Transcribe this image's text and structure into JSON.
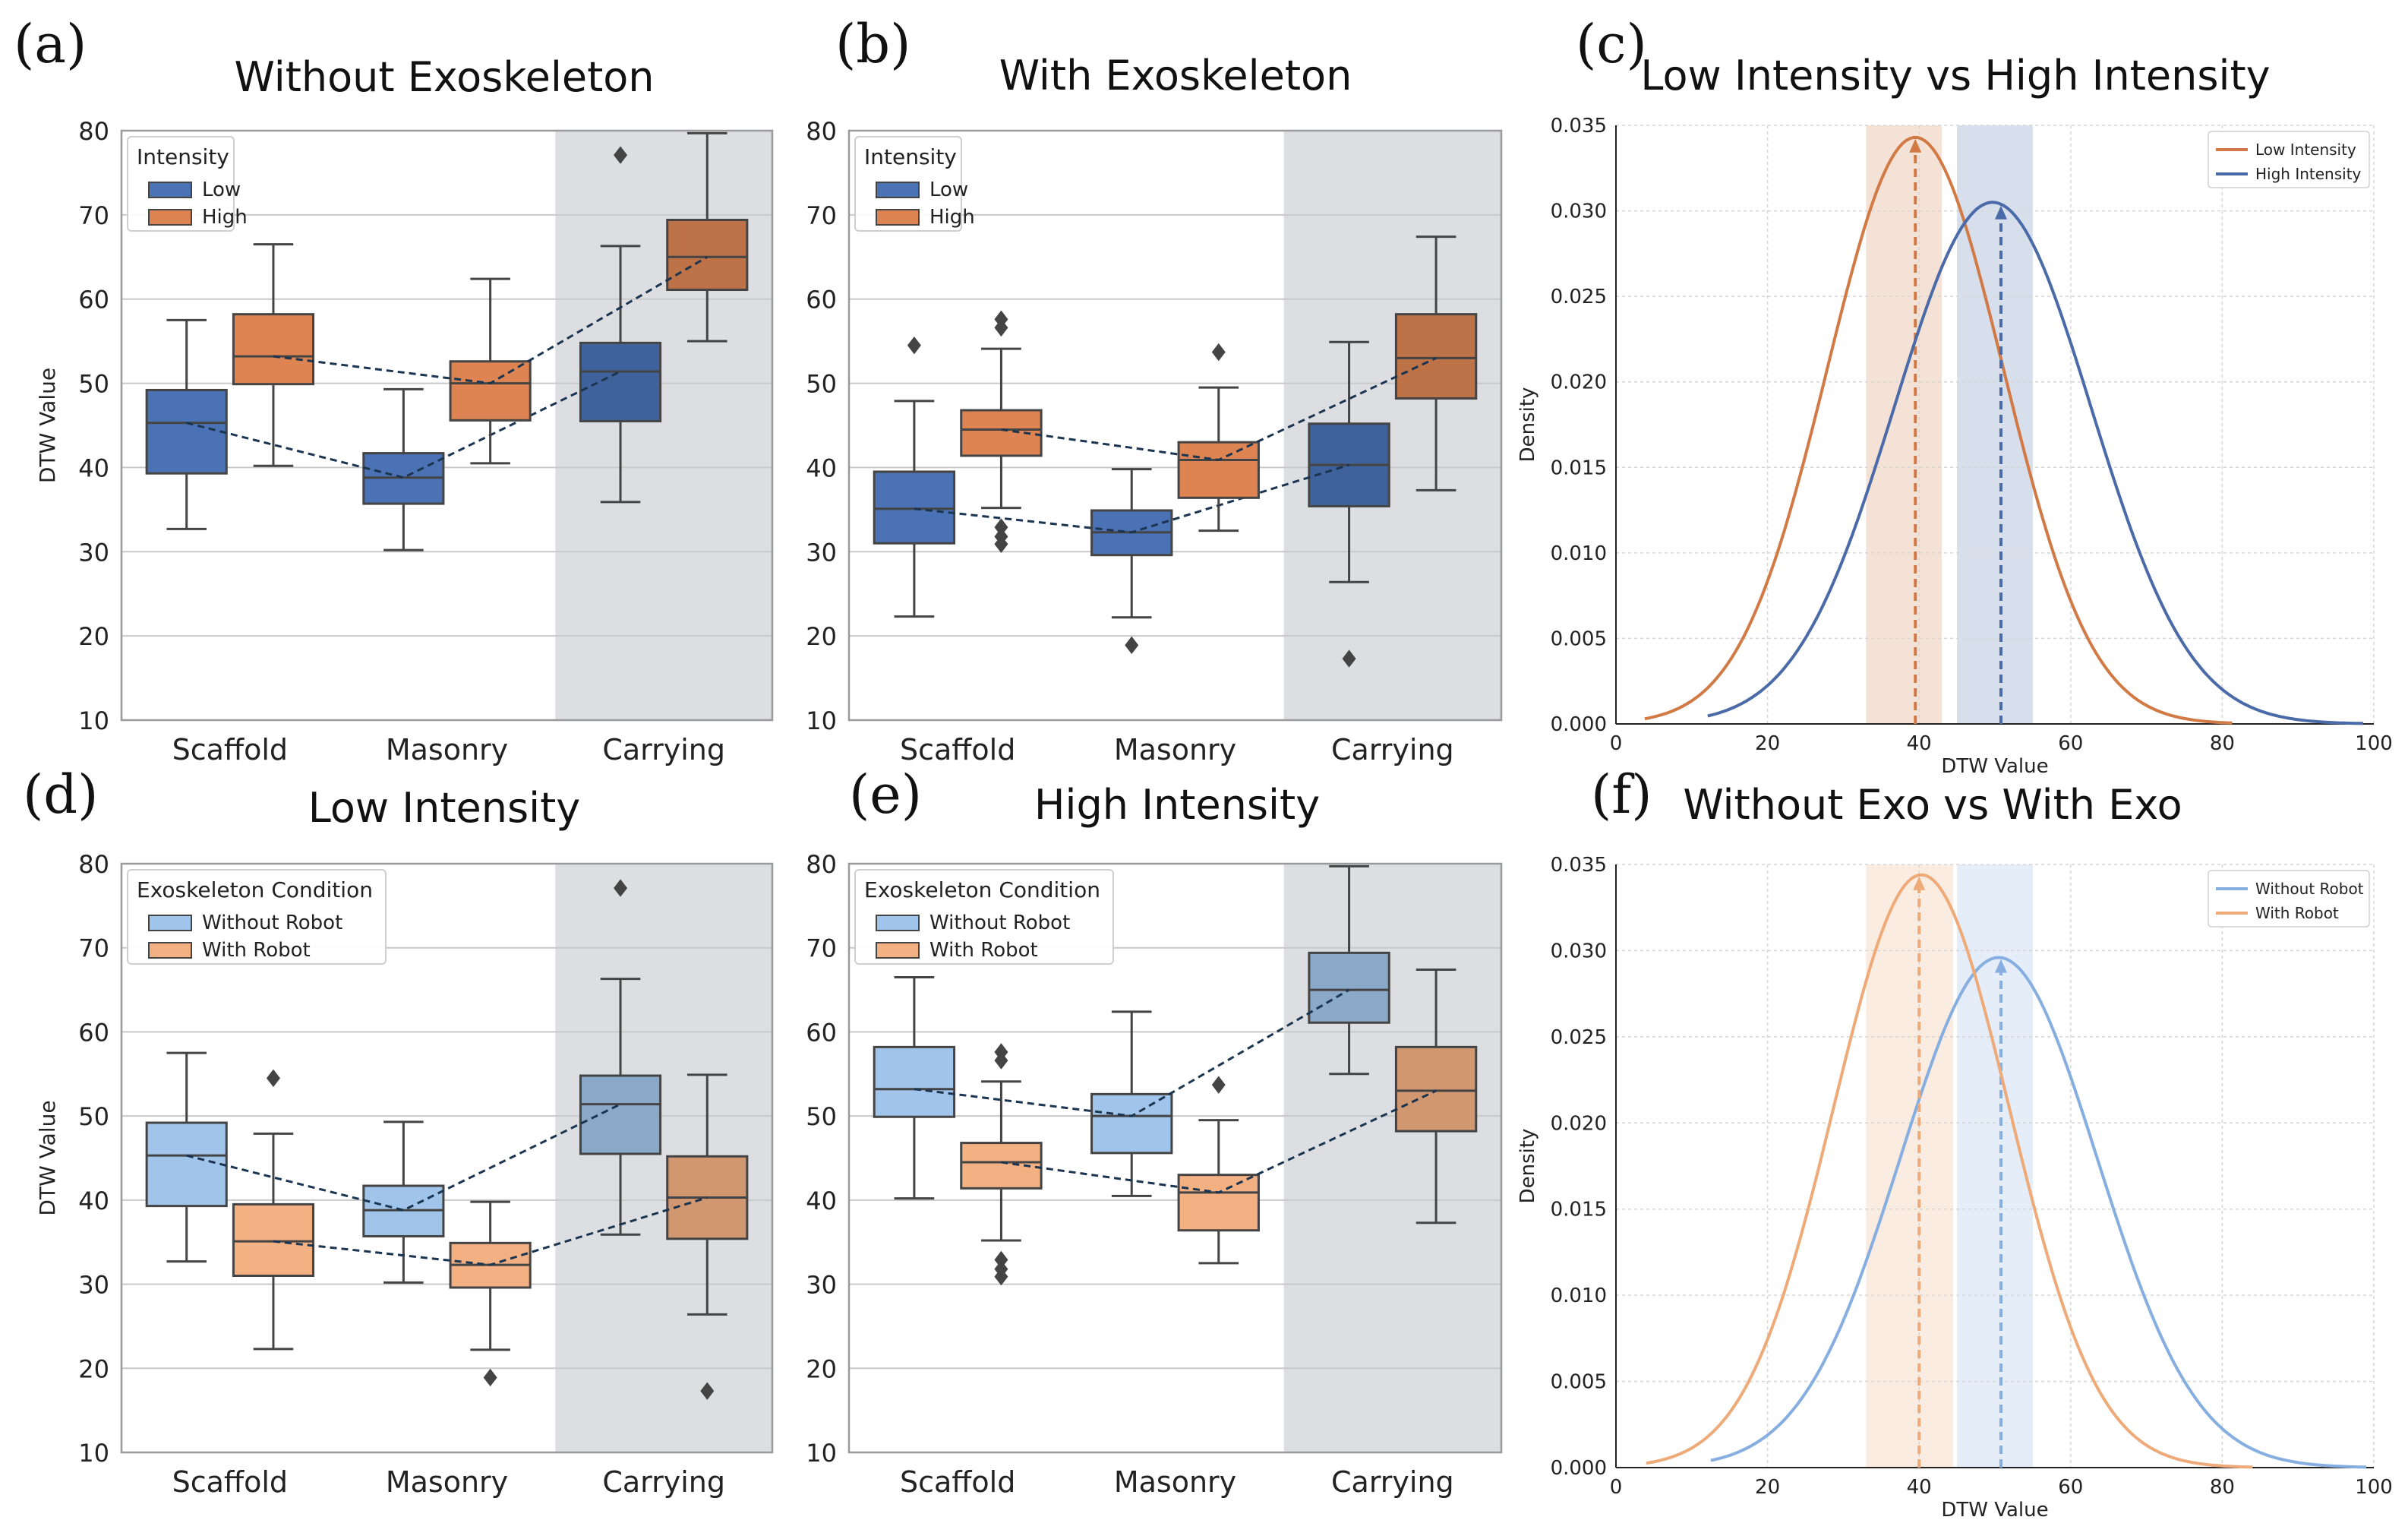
{
  "figure": {
    "colors": {
      "low": "#4a72b5",
      "high": "#dd8452",
      "without_robot": "#a1c4ea",
      "with_robot": "#f2b083",
      "kde_low": "#d27a45",
      "kde_high": "#4a6aa8",
      "kde_without": "#86aee0",
      "kde_with": "#eeaa78",
      "shade": "#dcdee2",
      "trend": "#1b3450"
    }
  },
  "chart_data": [
    {
      "panel": "(a)",
      "type": "box",
      "title": "Without Exoskeleton",
      "xlabel": "",
      "ylabel": "DTW Value",
      "ylim": [
        10,
        80
      ],
      "yticks": [
        10,
        20,
        30,
        40,
        50,
        60,
        70,
        80
      ],
      "categories": [
        "Scaffold",
        "Masonry",
        "Carrying"
      ],
      "shaded_category": "Carrying",
      "legend": {
        "title": "Intensity",
        "location": "top-left"
      },
      "trend_lines": true,
      "series": [
        {
          "name": "Low",
          "color_key": "low",
          "boxes": [
            {
              "min": 32.7,
              "q1": 39.3,
              "median": 45.3,
              "q3": 49.2,
              "max": 57.5,
              "outliers": []
            },
            {
              "min": 30.2,
              "q1": 35.7,
              "median": 38.8,
              "q3": 41.7,
              "max": 49.3,
              "outliers": []
            },
            {
              "min": 35.9,
              "q1": 45.5,
              "median": 51.4,
              "q3": 54.8,
              "max": 66.3,
              "outliers": [
                77.1
              ]
            }
          ]
        },
        {
          "name": "High",
          "color_key": "high",
          "boxes": [
            {
              "min": 40.2,
              "q1": 49.9,
              "median": 53.2,
              "q3": 58.2,
              "max": 66.5,
              "outliers": []
            },
            {
              "min": 40.5,
              "q1": 45.6,
              "median": 50.0,
              "q3": 52.6,
              "max": 62.4,
              "outliers": []
            },
            {
              "min": 55.0,
              "q1": 61.1,
              "median": 65.0,
              "q3": 69.4,
              "max": 79.7,
              "outliers": []
            }
          ]
        }
      ]
    },
    {
      "panel": "(b)",
      "type": "box",
      "title": "With Exoskeleton",
      "xlabel": "",
      "ylabel": "",
      "ylim": [
        10,
        80
      ],
      "yticks": [
        10,
        20,
        30,
        40,
        50,
        60,
        70,
        80
      ],
      "categories": [
        "Scaffold",
        "Masonry",
        "Carrying"
      ],
      "shaded_category": "Carrying",
      "legend": {
        "title": "Intensity",
        "location": "top-left"
      },
      "trend_lines": true,
      "series": [
        {
          "name": "Low",
          "color_key": "low",
          "boxes": [
            {
              "min": 22.3,
              "q1": 31.0,
              "median": 35.1,
              "q3": 39.5,
              "max": 47.9,
              "outliers": [
                54.5
              ]
            },
            {
              "min": 22.2,
              "q1": 29.6,
              "median": 32.3,
              "q3": 34.9,
              "max": 39.8,
              "outliers": [
                18.9
              ]
            },
            {
              "min": 26.4,
              "q1": 35.4,
              "median": 40.3,
              "q3": 45.2,
              "max": 54.9,
              "outliers": [
                17.3
              ]
            }
          ]
        },
        {
          "name": "High",
          "color_key": "high",
          "boxes": [
            {
              "min": 35.2,
              "q1": 41.4,
              "median": 44.5,
              "q3": 46.8,
              "max": 54.1,
              "outliers": [
                56.6,
                57.6,
                30.9,
                31.8,
                32.9
              ]
            },
            {
              "min": 32.5,
              "q1": 36.4,
              "median": 40.9,
              "q3": 43.0,
              "max": 49.5,
              "outliers": [
                53.7
              ]
            },
            {
              "min": 37.3,
              "q1": 48.2,
              "median": 53.0,
              "q3": 58.2,
              "max": 67.4,
              "outliers": []
            }
          ]
        }
      ]
    },
    {
      "panel": "(c)",
      "type": "density",
      "title": "Low Intensity vs High Intensity",
      "xlabel": "DTW Value",
      "ylabel": "Density",
      "xlim": [
        0,
        100
      ],
      "ylim": [
        0,
        0.035
      ],
      "xticks": [
        0,
        20,
        40,
        60,
        80,
        100
      ],
      "yticks": [
        "0.000",
        "0.005",
        "0.010",
        "0.015",
        "0.020",
        "0.025",
        "0.030",
        "0.035"
      ],
      "legend": {
        "location": "top-right"
      },
      "series": [
        {
          "name": "Low Intensity",
          "color_key": "kde_low",
          "peak_x": 39.5,
          "peak_y": 0.0343,
          "sigma": 11.6,
          "x_range": [
            3.8,
            81.5
          ],
          "marker_x": 39.5,
          "band": [
            33.0,
            43.0
          ]
        },
        {
          "name": "High Intensity",
          "color_key": "kde_high",
          "peak_x": 49.7,
          "peak_y": 0.0305,
          "sigma": 13.0,
          "x_range": [
            12.1,
            98.6
          ],
          "marker_x": 50.8,
          "band": [
            45.0,
            55.0
          ]
        }
      ]
    },
    {
      "panel": "(d)",
      "type": "box",
      "title": "Low Intensity",
      "xlabel": "",
      "ylabel": "DTW Value",
      "ylim": [
        10,
        80
      ],
      "yticks": [
        10,
        20,
        30,
        40,
        50,
        60,
        70,
        80
      ],
      "categories": [
        "Scaffold",
        "Masonry",
        "Carrying"
      ],
      "shaded_category": "Carrying",
      "legend": {
        "title": "Exoskeleton Condition",
        "location": "top-left"
      },
      "trend_lines": true,
      "series": [
        {
          "name": "Without Robot",
          "color_key": "without_robot",
          "boxes": [
            {
              "min": 32.7,
              "q1": 39.3,
              "median": 45.3,
              "q3": 49.2,
              "max": 57.5,
              "outliers": []
            },
            {
              "min": 30.2,
              "q1": 35.7,
              "median": 38.8,
              "q3": 41.7,
              "max": 49.3,
              "outliers": []
            },
            {
              "min": 35.9,
              "q1": 45.5,
              "median": 51.4,
              "q3": 54.8,
              "max": 66.3,
              "outliers": [
                77.1
              ]
            }
          ]
        },
        {
          "name": "With Robot",
          "color_key": "with_robot",
          "boxes": [
            {
              "min": 22.3,
              "q1": 31.0,
              "median": 35.1,
              "q3": 39.5,
              "max": 47.9,
              "outliers": [
                54.5
              ]
            },
            {
              "min": 22.2,
              "q1": 29.6,
              "median": 32.3,
              "q3": 34.9,
              "max": 39.8,
              "outliers": [
                18.9
              ]
            },
            {
              "min": 26.4,
              "q1": 35.4,
              "median": 40.3,
              "q3": 45.2,
              "max": 54.9,
              "outliers": [
                17.3
              ]
            }
          ]
        }
      ]
    },
    {
      "panel": "(e)",
      "type": "box",
      "title": "High Intensity",
      "xlabel": "",
      "ylabel": "",
      "ylim": [
        10,
        80
      ],
      "yticks": [
        10,
        20,
        30,
        40,
        50,
        60,
        70,
        80
      ],
      "categories": [
        "Scaffold",
        "Masonry",
        "Carrying"
      ],
      "shaded_category": "Carrying",
      "legend": {
        "title": "Exoskeleton Condition",
        "location": "top-left"
      },
      "trend_lines": true,
      "series": [
        {
          "name": "Without Robot",
          "color_key": "without_robot",
          "boxes": [
            {
              "min": 40.2,
              "q1": 49.9,
              "median": 53.2,
              "q3": 58.2,
              "max": 66.5,
              "outliers": []
            },
            {
              "min": 40.5,
              "q1": 45.6,
              "median": 50.0,
              "q3": 52.6,
              "max": 62.4,
              "outliers": []
            },
            {
              "min": 55.0,
              "q1": 61.1,
              "median": 65.0,
              "q3": 69.4,
              "max": 79.7,
              "outliers": []
            }
          ]
        },
        {
          "name": "With Robot",
          "color_key": "with_robot",
          "boxes": [
            {
              "min": 35.2,
              "q1": 41.4,
              "median": 44.5,
              "q3": 46.8,
              "max": 54.1,
              "outliers": [
                56.6,
                57.6,
                30.9,
                31.8,
                32.9
              ]
            },
            {
              "min": 32.5,
              "q1": 36.4,
              "median": 40.9,
              "q3": 43.0,
              "max": 49.5,
              "outliers": [
                53.7
              ]
            },
            {
              "min": 37.3,
              "q1": 48.2,
              "median": 53.0,
              "q3": 58.2,
              "max": 67.4,
              "outliers": []
            }
          ]
        }
      ]
    },
    {
      "panel": "(f)",
      "type": "density",
      "title": "Without Exo vs With Exo",
      "xlabel": "DTW Value",
      "ylabel": "Density",
      "xlim": [
        0,
        100
      ],
      "ylim": [
        0,
        0.035
      ],
      "xticks": [
        0,
        20,
        40,
        60,
        80,
        100
      ],
      "yticks": [
        "0.000",
        "0.005",
        "0.010",
        "0.015",
        "0.020",
        "0.025",
        "0.030",
        "0.035"
      ],
      "legend": {
        "location": "top-right"
      },
      "series": [
        {
          "name": "Without Robot",
          "color_key": "kde_without",
          "peak_x": 50.5,
          "peak_y": 0.0296,
          "sigma": 13.0,
          "x_range": [
            12.5,
            99.0
          ],
          "marker_x": 50.8,
          "band": [
            45.0,
            55.0
          ]
        },
        {
          "name": "With Robot",
          "color_key": "kde_with",
          "peak_x": 40.3,
          "peak_y": 0.0344,
          "sigma": 11.6,
          "x_range": [
            4.0,
            84.0
          ],
          "marker_x": 40.0,
          "band": [
            33.0,
            44.5
          ]
        }
      ]
    }
  ]
}
